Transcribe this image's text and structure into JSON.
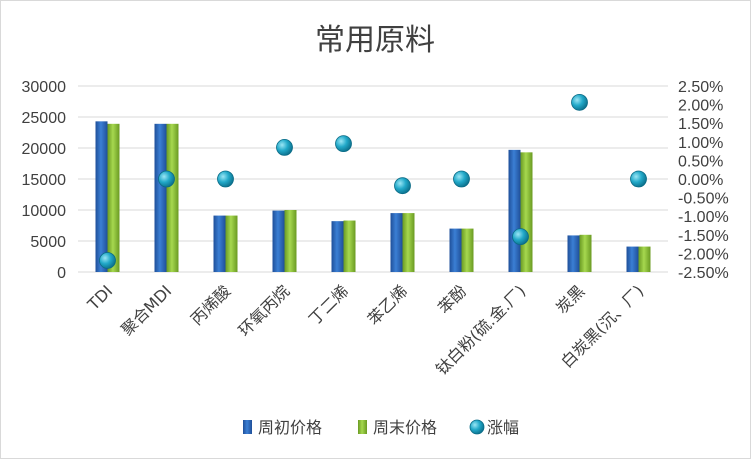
{
  "chart_data": {
    "type": "bar",
    "title": "常用原料",
    "categories": [
      "TDI",
      "聚合MDI",
      "丙烯酸",
      "环氧丙烷",
      "丁二烯",
      "苯乙烯",
      "苯酚",
      "钛白粉(硫.金.厂)",
      "炭黑",
      "白炭黑(沉、厂)"
    ],
    "series": [
      {
        "name": "周初价格",
        "axis": "left",
        "kind": "bar",
        "color": "#2e6fc0",
        "values": [
          24300,
          23900,
          9100,
          9900,
          8200,
          9500,
          7000,
          19700,
          5900,
          4100
        ]
      },
      {
        "name": "周末价格",
        "axis": "left",
        "kind": "bar",
        "color": "#8dc63f",
        "values": [
          23900,
          23900,
          9100,
          10000,
          8300,
          9500,
          7000,
          19300,
          6000,
          4100
        ]
      },
      {
        "name": "涨幅",
        "axis": "right",
        "kind": "marker",
        "color": "#1eaac8",
        "values": [
          -0.0219,
          0.0,
          0.0,
          0.0085,
          0.0095,
          -0.0018,
          0.0,
          -0.0155,
          0.0206,
          0.0
        ]
      }
    ],
    "y_left": {
      "min": 0,
      "max": 30000,
      "step": 5000,
      "ticks": [
        "0",
        "5000",
        "10000",
        "15000",
        "20000",
        "25000",
        "30000"
      ]
    },
    "y_right": {
      "min": -0.025,
      "max": 0.025,
      "step": 0.005,
      "ticks": [
        "-2.50%",
        "-2.00%",
        "-1.50%",
        "-1.00%",
        "-0.50%",
        "0.00%",
        "0.50%",
        "1.00%",
        "1.50%",
        "2.00%",
        "2.50%"
      ]
    },
    "grid": true,
    "legend_position": "bottom"
  }
}
